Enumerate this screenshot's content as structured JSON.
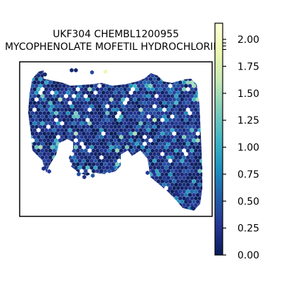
{
  "chart_data": {
    "type": "scatter",
    "title_line1": "UKF304 CHEMBL1200955",
    "title_line2": "MYCOPHENOLATE MOFETIL HYDROCHLORIDE",
    "xlabel": "",
    "ylabel": "",
    "grid": false,
    "legend": "none",
    "colorbar": {
      "cmap": "YlGnBu",
      "vmin": 0.0,
      "vmax": 2.15,
      "ticks": [
        0.0,
        0.25,
        0.5,
        0.75,
        1.0,
        1.25,
        1.5,
        1.75,
        2.0
      ],
      "tick_labels": [
        "0.00",
        "0.25",
        "0.50",
        "0.75",
        "1.00",
        "1.25",
        "1.50",
        "1.75",
        "2.00"
      ]
    },
    "spots": {
      "marker": "hexagon",
      "description_level": "dense spatial transcriptomics spot map; values mostly 0.0-0.6 with sparse higher spots up to ~2.1"
    }
  }
}
